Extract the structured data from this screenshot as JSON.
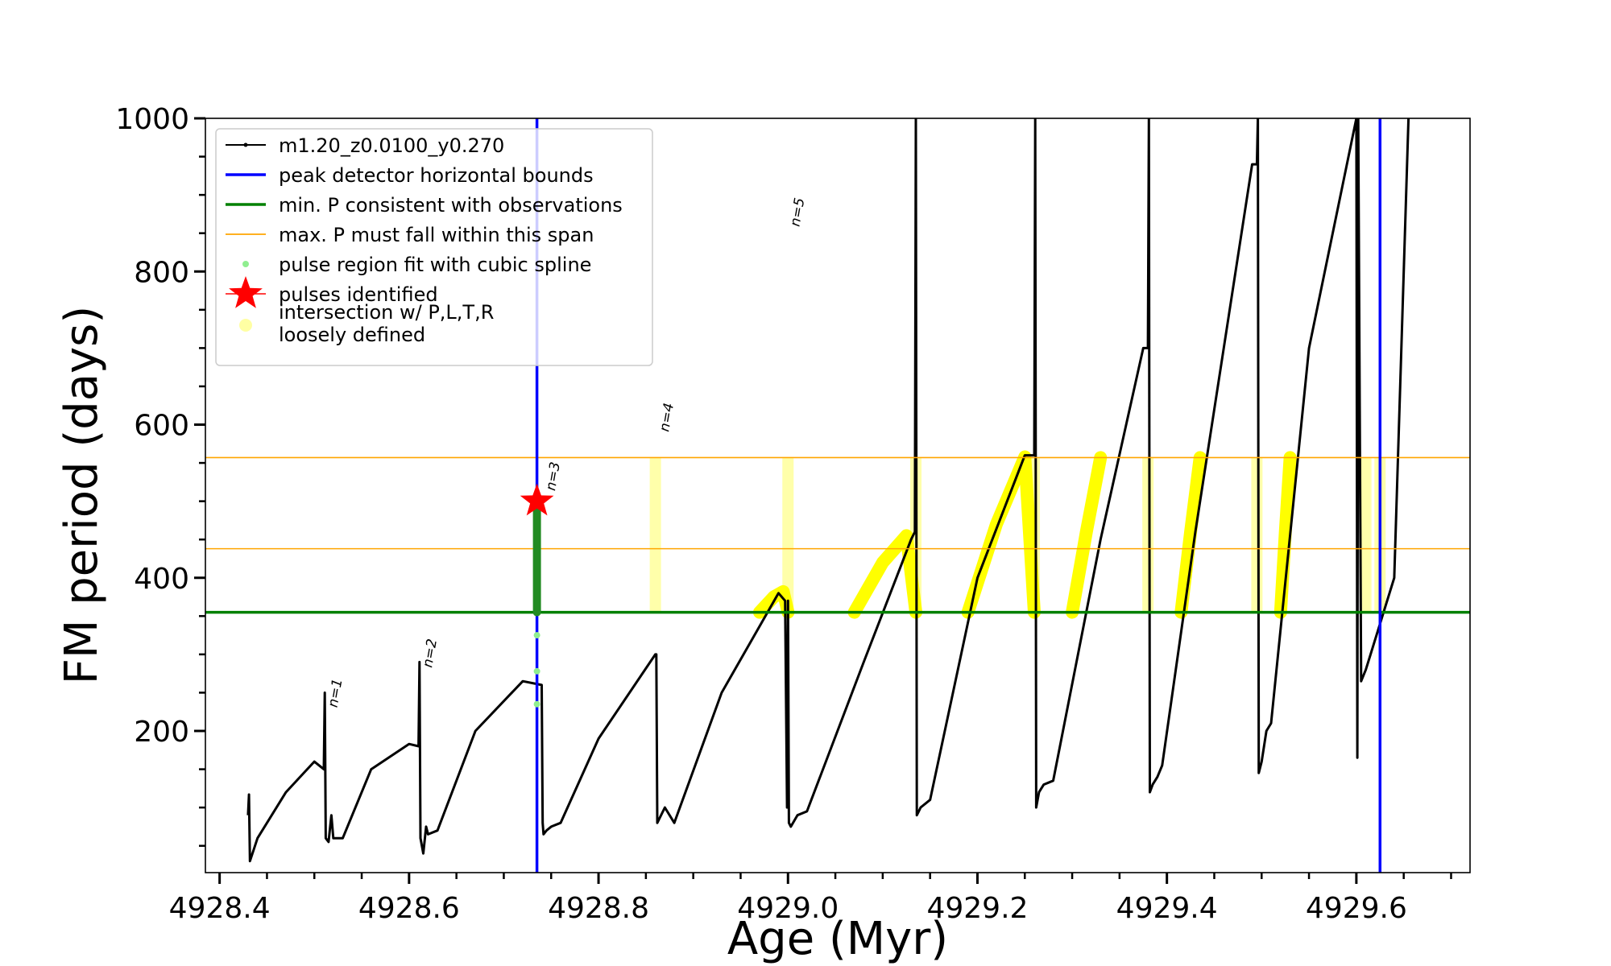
{
  "chart_data": {
    "type": "line",
    "xlabel": "Age (Myr)",
    "ylabel": "FM period (days)",
    "xlim": [
      4928.385,
      4929.72
    ],
    "ylim": [
      15,
      1000
    ],
    "xticks": [
      4928.4,
      4928.6,
      4928.8,
      4929.0,
      4929.2,
      4929.4,
      4929.6
    ],
    "xtick_labels": [
      "4928.4",
      "4928.6",
      "4928.8",
      "4929.0",
      "4929.2",
      "4929.4",
      "4929.6"
    ],
    "yticks": [
      200,
      400,
      600,
      800,
      1000
    ],
    "ytick_labels": [
      "200",
      "400",
      "600",
      "800",
      "1000"
    ],
    "grid": false,
    "legend_position": "top-left",
    "legend": [
      {
        "label": "m1.20_z0.0100_y0.270",
        "kind": "line-dots",
        "color": "#000000"
      },
      {
        "label": "peak detector horizontal bounds",
        "kind": "line",
        "color": "#0000ff"
      },
      {
        "label": "min. P consistent with observations",
        "kind": "line",
        "color": "#008000"
      },
      {
        "label": "max. P must fall within this span",
        "kind": "thin-line",
        "color": "#ffa500"
      },
      {
        "label": "pulse region fit with cubic spline",
        "kind": "dot",
        "color": "#90ee90"
      },
      {
        "label": "pulses identified",
        "kind": "star",
        "color": "#ff0000"
      },
      {
        "label": "intersection w/ P,L,T,R\nloosely defined",
        "kind": "big-dot",
        "color": "#ffff66"
      }
    ],
    "series": [
      {
        "name": "m1.20_z0.0100_y0.270",
        "color": "#000000",
        "x": [
          4928.43,
          4928.431,
          4928.432,
          4928.44,
          4928.47,
          4928.5,
          4928.51,
          4928.511,
          4928.512,
          4928.515,
          4928.518,
          4928.52,
          4928.53,
          4928.56,
          4928.6,
          4928.61,
          4928.611,
          4928.612,
          4928.615,
          4928.618,
          4928.62,
          4928.63,
          4928.67,
          4928.72,
          4928.74,
          4928.741,
          4928.742,
          4928.745,
          4928.75,
          4928.76,
          4928.8,
          4928.86,
          4928.861,
          4928.862,
          4928.87,
          4928.88,
          4928.93,
          4928.99,
          4928.997,
          4928.999,
          4929.0,
          4929.001,
          4929.003,
          4929.01,
          4929.02,
          4929.08,
          4929.13,
          4929.134,
          4929.135,
          4929.136,
          4929.138,
          4929.14,
          4929.15,
          4929.2,
          4929.25,
          4929.26,
          4929.261,
          4929.262,
          4929.265,
          4929.27,
          4929.28,
          4929.33,
          4929.375,
          4929.38,
          4929.381,
          4929.382,
          4929.385,
          4929.39,
          4929.395,
          4929.43,
          4929.49,
          4929.495,
          4929.496,
          4929.497,
          4929.5,
          4929.505,
          4929.51,
          4929.55,
          4929.6,
          4929.601,
          4929.602,
          4929.605,
          4929.61,
          4929.615,
          4929.64,
          4929.655
        ],
        "y": [
          90,
          117,
          30,
          60,
          120,
          160,
          150,
          250,
          60,
          55,
          90,
          60,
          60,
          150,
          183,
          180,
          290,
          60,
          40,
          75,
          65,
          70,
          200,
          265,
          260,
          80,
          65,
          70,
          75,
          80,
          190,
          300,
          300,
          80,
          100,
          80,
          250,
          380,
          370,
          100,
          370,
          80,
          75,
          90,
          95,
          290,
          450,
          460,
          1000,
          90,
          95,
          100,
          110,
          400,
          560,
          560,
          1000,
          100,
          120,
          130,
          135,
          450,
          700,
          700,
          1000,
          120,
          130,
          140,
          155,
          460,
          940,
          940,
          1000,
          145,
          160,
          200,
          210,
          700,
          1000,
          165,
          1000,
          265,
          280,
          300,
          400,
          1000
        ]
      }
    ],
    "blue_vlines_x": [
      4928.735,
      4929.625
    ],
    "green_hline_y": 355,
    "orange_hlines_y": [
      438,
      557
    ],
    "pulse_region_green": {
      "x": 4928.735,
      "y_range": [
        355,
        500
      ],
      "extra_points_y": [
        235,
        278,
        325
      ]
    },
    "pulses_identified": [
      {
        "x": 4928.735,
        "y": 500
      }
    ],
    "yellow_arcs": [
      {
        "x": [
          4928.97,
          4928.985,
          4928.995,
          4929.0
        ],
        "y": [
          355,
          375,
          382,
          355
        ]
      },
      {
        "x": [
          4929.07,
          4929.1,
          4929.125,
          4929.135
        ],
        "y": [
          355,
          420,
          455,
          355
        ]
      },
      {
        "x": [
          4929.19,
          4929.22,
          4929.25,
          4929.26
        ],
        "y": [
          355,
          470,
          558,
          355
        ]
      },
      {
        "x": [
          4929.3,
          4929.315,
          4929.33
        ],
        "y": [
          355,
          460,
          557
        ]
      },
      {
        "x": [
          4929.415,
          4929.425,
          4929.435
        ],
        "y": [
          355,
          460,
          557
        ]
      },
      {
        "x": [
          4929.52,
          4929.525,
          4929.53
        ],
        "y": [
          355,
          460,
          557
        ]
      }
    ],
    "yellow_bands_x": [
      4928.86,
      4929.0,
      4929.135,
      4929.26,
      4929.38,
      4929.495,
      4929.61,
      4929.625
    ],
    "annotations": [
      {
        "text": "n=1",
        "x": 4928.512,
        "y": 230
      },
      {
        "text": "n=2",
        "x": 4928.612,
        "y": 282
      },
      {
        "text": "n=3",
        "x": 4928.742,
        "y": 513
      },
      {
        "text": "n=4",
        "x": 4928.862,
        "y": 590
      },
      {
        "text": "n=5",
        "x": 4929.0,
        "y": 858
      }
    ]
  }
}
